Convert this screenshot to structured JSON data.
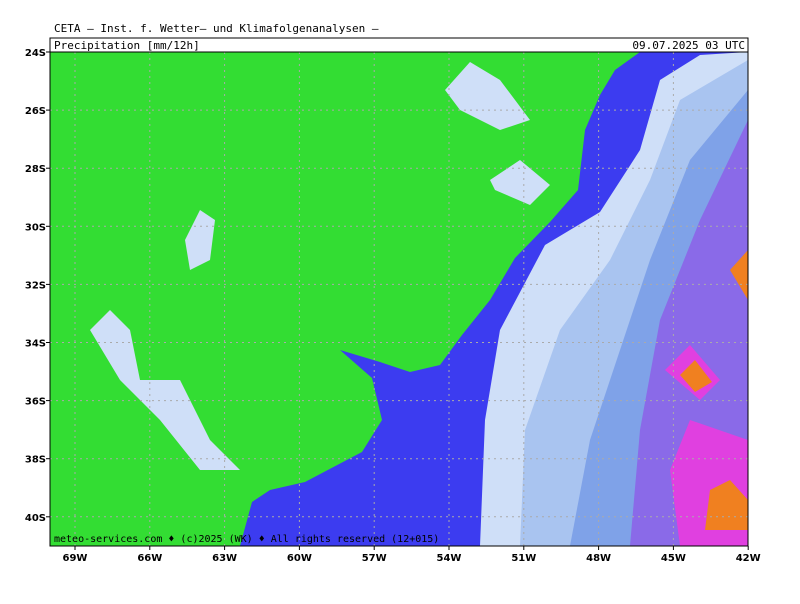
{
  "header": {
    "title": "CETA – Inst. f. Wetter– und Klimafolgenanalysen –",
    "parameter": "Precipitation [mm/12h]",
    "valid_time": "09.07.2025 03 UTC"
  },
  "map": {
    "lat_labels": [
      "24S",
      "26S",
      "28S",
      "30S",
      "32S",
      "34S",
      "36S",
      "38S",
      "40S"
    ],
    "lon_labels": [
      "69W",
      "66W",
      "63W",
      "60W",
      "57W",
      "54W",
      "51W",
      "48W",
      "45W",
      "42W"
    ],
    "credit": "meteo-services.com ♦ (c)2025 (WK) ♦ All rights reserved (12+015)"
  }
}
